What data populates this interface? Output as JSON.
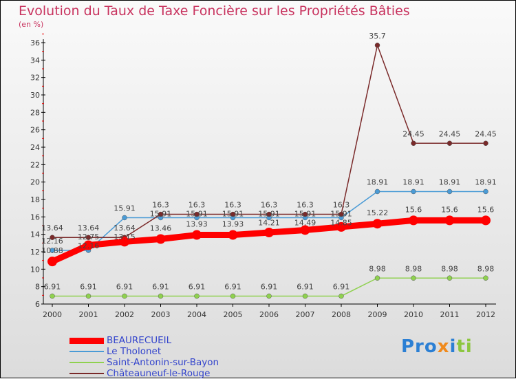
{
  "chart_data": {
    "type": "line",
    "title": "Evolution du Taux de Taxe Foncière sur les Propriétés Bâties",
    "ylabel": "(en %)",
    "xlabel": "",
    "ylim": [
      6,
      36
    ],
    "yticks": [
      6,
      8,
      10,
      12,
      14,
      16,
      18,
      20,
      22,
      24,
      26,
      28,
      30,
      32,
      34,
      36
    ],
    "x": [
      "2000",
      "2001",
      "2002",
      "2003",
      "2004",
      "2005",
      "2006",
      "2007",
      "2008",
      "2009",
      "2010",
      "2011",
      "2012"
    ],
    "series": [
      {
        "name": "BEAUREСUEIL",
        "color": "#ff0000",
        "values": [
          10.88,
          12.75,
          13.15,
          13.46,
          13.93,
          13.93,
          14.21,
          14.49,
          14.85,
          15.22,
          15.6,
          15.6,
          15.6
        ]
      },
      {
        "name": "Le Tholonet",
        "color": "#4a9bd6",
        "values": [
          12.16,
          12.16,
          15.91,
          15.91,
          15.91,
          15.91,
          15.91,
          15.91,
          15.91,
          18.91,
          18.91,
          18.91,
          18.91
        ]
      },
      {
        "name": "Saint-Antonin-sur-Bayon",
        "color": "#8fd14f",
        "values": [
          6.91,
          6.91,
          6.91,
          6.91,
          6.91,
          6.91,
          6.91,
          6.91,
          6.91,
          8.98,
          8.98,
          8.98,
          8.98
        ]
      },
      {
        "name": "Châteauneuf-le-Rouge",
        "color": "#7a2a2a",
        "values": [
          13.64,
          13.64,
          13.64,
          16.3,
          16.3,
          16.3,
          16.3,
          16.3,
          16.3,
          35.7,
          24.45,
          24.45,
          24.45
        ]
      }
    ],
    "legend_position": "bottom-left",
    "grid": false
  },
  "logo": "Proxiti"
}
